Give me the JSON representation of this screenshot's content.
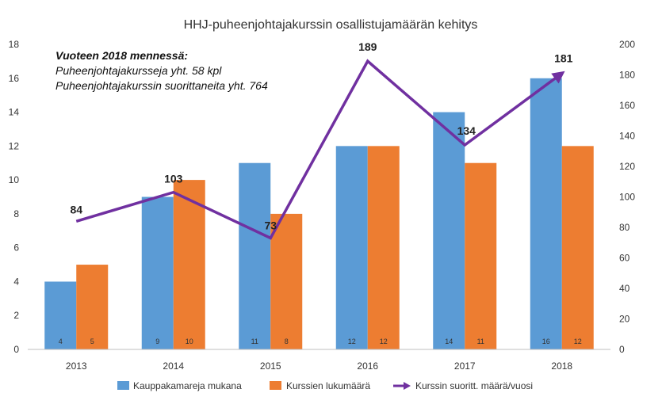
{
  "chart_data": {
    "type": "bar",
    "title": "HHJ-puheenjohtajakurssin osallistujamäärän kehitys",
    "categories": [
      "2013",
      "2014",
      "2015",
      "2016",
      "2017",
      "2018"
    ],
    "series": [
      {
        "name": "Kauppakamareja mukana",
        "type": "bar",
        "axis": "left",
        "color": "#5b9bd5",
        "values": [
          4,
          9,
          11,
          12,
          14,
          16
        ]
      },
      {
        "name": "Kurssien lukumäärä",
        "type": "bar",
        "axis": "left",
        "color": "#ed7d31",
        "values": [
          5,
          10,
          8,
          12,
          11,
          12
        ]
      },
      {
        "name": "Kurssin suoritt. määrä/vuosi",
        "type": "line",
        "axis": "right",
        "color": "#7030a0",
        "values": [
          84,
          103,
          73,
          189,
          134,
          181
        ]
      }
    ],
    "ylim": [
      0,
      18
    ],
    "yticks": [
      0,
      2,
      4,
      6,
      8,
      10,
      12,
      14,
      16,
      18
    ],
    "y2lim": [
      0,
      200
    ],
    "y2ticks": [
      0,
      20,
      40,
      60,
      80,
      100,
      120,
      140,
      160,
      180,
      200
    ],
    "legend": "bottom",
    "grid": false,
    "annotations": {
      "heading": "Vuoteen 2018 mennessä:",
      "line1": "Puheenjohtajakursseja yht. 58 kpl",
      "line2": "Puheenjohtajakurssin suorittaneita yht. 764"
    }
  }
}
